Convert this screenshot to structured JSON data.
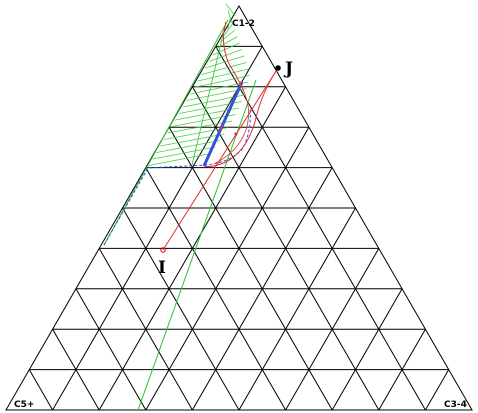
{
  "ternary": {
    "vertices": {
      "top": "C1-2",
      "left": "C5+",
      "right": "C3-4"
    },
    "grid_divisions": 10,
    "colors": {
      "grid": "#000000",
      "phase_boundary": "#e03030",
      "tie_line": "#30c030",
      "tie_line_hatch": "#40d040",
      "path": "#3a4fd8",
      "path_blue_dash": "#3050e0"
    },
    "points": [
      {
        "id": "J",
        "label": "J"
      },
      {
        "id": "I",
        "label": "I"
      }
    ]
  }
}
